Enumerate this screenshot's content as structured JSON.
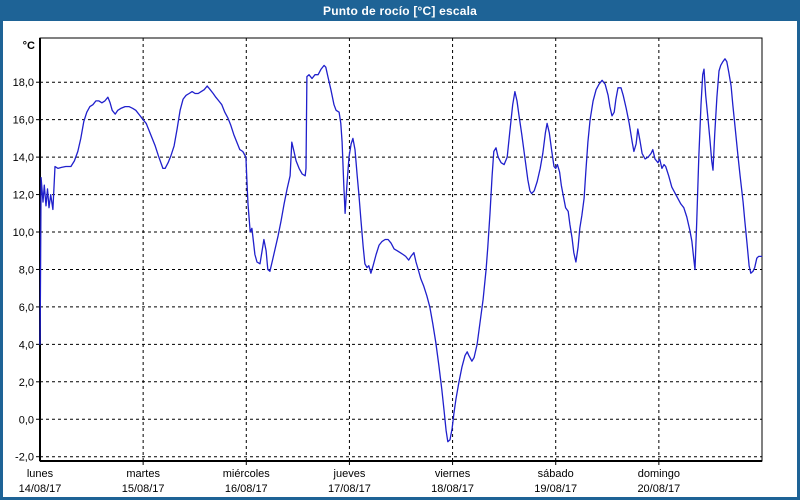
{
  "window": {
    "title": "Punto de rocío [°C] escala"
  },
  "colors": {
    "titlebar": "#1e6396",
    "window_border": "#1e6396",
    "plot_background": "#ffffff",
    "grid": "#000000",
    "axis": "#000000",
    "line": "#2020cc",
    "label": "#000000"
  },
  "chart_data": {
    "type": "line",
    "title": "Punto de rocío [°C] escala",
    "y_unit_label": "°C",
    "ylabel": "",
    "xlabel": "",
    "ylim": [
      -2.2,
      20.4
    ],
    "x_range_hours": [
      0,
      168
    ],
    "grid": "dashed",
    "legend_position": "none",
    "y_ticks": [
      {
        "value": 18,
        "label": "18,0"
      },
      {
        "value": 16,
        "label": "16,0"
      },
      {
        "value": 14,
        "label": "14,0"
      },
      {
        "value": 12,
        "label": "12,0"
      },
      {
        "value": 10,
        "label": "10,0"
      },
      {
        "value": 8,
        "label": "8,0"
      },
      {
        "value": 6,
        "label": "6,0"
      },
      {
        "value": 4,
        "label": "4,0"
      },
      {
        "value": 2,
        "label": "2,0"
      },
      {
        "value": 0,
        "label": "0,0"
      },
      {
        "value": -2,
        "label": "-2,0"
      }
    ],
    "x_days": [
      {
        "name": "lunes",
        "date": "14/08/17"
      },
      {
        "name": "martes",
        "date": "15/08/17"
      },
      {
        "name": "miércoles",
        "date": "16/08/17"
      },
      {
        "name": "jueves",
        "date": "17/08/17"
      },
      {
        "name": "viernes",
        "date": "18/08/17"
      },
      {
        "name": "sábado",
        "date": "19/08/17"
      },
      {
        "name": "domingo",
        "date": "20/08/17"
      }
    ],
    "series": [
      {
        "name": "Punto de rocío",
        "color": "#2020cc",
        "points": [
          [
            0,
            4.0
          ],
          [
            0.1,
            6.6
          ],
          [
            0.25,
            12.9
          ],
          [
            0.7,
            11.6
          ],
          [
            1.0,
            12.5
          ],
          [
            1.4,
            11.4
          ],
          [
            1.75,
            12.3
          ],
          [
            2.1,
            11.3
          ],
          [
            2.5,
            12.0
          ],
          [
            3.0,
            11.2
          ],
          [
            3.5,
            13.5
          ],
          [
            4.2,
            13.4
          ],
          [
            5.0,
            13.45
          ],
          [
            6.0,
            13.5
          ],
          [
            7.2,
            13.5
          ],
          [
            8.0,
            13.8
          ],
          [
            8.8,
            14.3
          ],
          [
            9.5,
            15.0
          ],
          [
            10.2,
            15.9
          ],
          [
            10.9,
            16.4
          ],
          [
            11.6,
            16.7
          ],
          [
            12.3,
            16.8
          ],
          [
            13.0,
            17.0
          ],
          [
            13.7,
            17.0
          ],
          [
            14.4,
            16.9
          ],
          [
            15.1,
            17.0
          ],
          [
            15.8,
            17.2
          ],
          [
            16.3,
            16.9
          ],
          [
            16.8,
            16.5
          ],
          [
            17.5,
            16.3
          ],
          [
            18.1,
            16.5
          ],
          [
            18.8,
            16.6
          ],
          [
            19.8,
            16.7
          ],
          [
            20.7,
            16.7
          ],
          [
            21.6,
            16.6
          ],
          [
            22.3,
            16.5
          ],
          [
            23.0,
            16.3
          ],
          [
            24.0,
            16.0
          ],
          [
            24.7,
            15.8
          ],
          [
            25.4,
            15.4
          ],
          [
            26.1,
            15.0
          ],
          [
            26.8,
            14.6
          ],
          [
            27.5,
            14.1
          ],
          [
            28.6,
            13.4
          ],
          [
            29.1,
            13.4
          ],
          [
            29.8,
            13.7
          ],
          [
            30.5,
            14.1
          ],
          [
            31.2,
            14.6
          ],
          [
            31.9,
            15.5
          ],
          [
            32.6,
            16.5
          ],
          [
            33.3,
            17.1
          ],
          [
            34.0,
            17.3
          ],
          [
            34.7,
            17.4
          ],
          [
            35.4,
            17.5
          ],
          [
            36.1,
            17.4
          ],
          [
            36.8,
            17.4
          ],
          [
            37.5,
            17.5
          ],
          [
            38.2,
            17.6
          ],
          [
            38.9,
            17.8
          ],
          [
            39.6,
            17.6
          ],
          [
            40.3,
            17.4
          ],
          [
            40.9,
            17.2
          ],
          [
            41.6,
            17.0
          ],
          [
            42.3,
            16.8
          ],
          [
            43.0,
            16.4
          ],
          [
            43.7,
            16.1
          ],
          [
            44.4,
            15.7
          ],
          [
            45.1,
            15.2
          ],
          [
            45.8,
            14.8
          ],
          [
            46.5,
            14.4
          ],
          [
            47.2,
            14.3
          ],
          [
            47.9,
            14.0
          ],
          [
            48.2,
            12.5
          ],
          [
            48.4,
            11.5
          ],
          [
            48.9,
            10.0
          ],
          [
            49.3,
            10.2
          ],
          [
            49.6,
            9.6
          ],
          [
            50.0,
            8.8
          ],
          [
            50.5,
            8.4
          ],
          [
            51.2,
            8.3
          ],
          [
            51.6,
            8.9
          ],
          [
            52.1,
            9.6
          ],
          [
            52.6,
            9.0
          ],
          [
            53.0,
            8.0
          ],
          [
            53.5,
            7.9
          ],
          [
            54.0,
            8.4
          ],
          [
            54.7,
            9.1
          ],
          [
            55.4,
            9.8
          ],
          [
            56.1,
            10.6
          ],
          [
            56.8,
            11.5
          ],
          [
            57.5,
            12.3
          ],
          [
            58.2,
            13.0
          ],
          [
            58.6,
            14.8
          ],
          [
            59.1,
            14.3
          ],
          [
            59.6,
            13.8
          ],
          [
            60.3,
            13.4
          ],
          [
            61.0,
            13.1
          ],
          [
            61.7,
            13.0
          ],
          [
            61.9,
            13.4
          ],
          [
            62.1,
            18.3
          ],
          [
            62.6,
            18.4
          ],
          [
            63.3,
            18.2
          ],
          [
            64.0,
            18.4
          ],
          [
            64.7,
            18.4
          ],
          [
            65.4,
            18.7
          ],
          [
            66.1,
            18.9
          ],
          [
            66.5,
            18.8
          ],
          [
            67.0,
            18.3
          ],
          [
            67.7,
            17.6
          ],
          [
            68.4,
            16.8
          ],
          [
            68.9,
            16.5
          ],
          [
            69.6,
            16.4
          ],
          [
            70.0,
            15.8
          ],
          [
            70.3,
            14.8
          ],
          [
            70.7,
            12.5
          ],
          [
            71.0,
            11.0
          ],
          [
            71.4,
            12.5
          ],
          [
            71.9,
            14.0
          ],
          [
            72.4,
            14.7
          ],
          [
            72.8,
            15.0
          ],
          [
            73.3,
            14.4
          ],
          [
            73.8,
            13.0
          ],
          [
            74.2,
            12.0
          ],
          [
            74.7,
            10.6
          ],
          [
            75.2,
            9.2
          ],
          [
            75.6,
            8.3
          ],
          [
            76.1,
            8.1
          ],
          [
            76.5,
            8.2
          ],
          [
            77.0,
            7.8
          ],
          [
            77.5,
            8.2
          ],
          [
            78.2,
            8.8
          ],
          [
            78.9,
            9.3
          ],
          [
            79.6,
            9.5
          ],
          [
            80.3,
            9.6
          ],
          [
            81.0,
            9.6
          ],
          [
            81.7,
            9.4
          ],
          [
            82.4,
            9.1
          ],
          [
            83.1,
            9.0
          ],
          [
            83.8,
            8.9
          ],
          [
            84.5,
            8.8
          ],
          [
            85.1,
            8.7
          ],
          [
            85.8,
            8.5
          ],
          [
            86.3,
            8.7
          ],
          [
            87.0,
            8.9
          ],
          [
            87.5,
            8.4
          ],
          [
            88.0,
            8.0
          ],
          [
            88.6,
            7.5
          ],
          [
            89.3,
            7.1
          ],
          [
            90.0,
            6.6
          ],
          [
            90.7,
            6.0
          ],
          [
            91.4,
            5.1
          ],
          [
            92.1,
            4.1
          ],
          [
            92.8,
            2.9
          ],
          [
            93.5,
            1.6
          ],
          [
            94.0,
            0.5
          ],
          [
            94.5,
            -0.6
          ],
          [
            94.9,
            -1.2
          ],
          [
            95.4,
            -1.1
          ],
          [
            95.9,
            -0.5
          ],
          [
            96.3,
            0.3
          ],
          [
            96.8,
            1.1
          ],
          [
            97.5,
            2.0
          ],
          [
            98.2,
            2.8
          ],
          [
            98.9,
            3.4
          ],
          [
            99.4,
            3.6
          ],
          [
            99.8,
            3.4
          ],
          [
            100.5,
            3.1
          ],
          [
            101.0,
            3.3
          ],
          [
            101.7,
            4.0
          ],
          [
            102.4,
            5.2
          ],
          [
            103.1,
            6.4
          ],
          [
            103.8,
            8.0
          ],
          [
            104.2,
            9.2
          ],
          [
            104.7,
            11.0
          ],
          [
            105.2,
            13.0
          ],
          [
            105.6,
            14.3
          ],
          [
            106.1,
            14.5
          ],
          [
            106.6,
            14.0
          ],
          [
            107.3,
            13.7
          ],
          [
            108.0,
            13.6
          ],
          [
            108.7,
            14.0
          ],
          [
            109.3,
            15.3
          ],
          [
            110.0,
            16.8
          ],
          [
            110.5,
            17.5
          ],
          [
            111.0,
            17.0
          ],
          [
            111.4,
            16.3
          ],
          [
            112.1,
            15.2
          ],
          [
            112.8,
            14.0
          ],
          [
            113.5,
            12.8
          ],
          [
            114.0,
            12.2
          ],
          [
            114.4,
            12.05
          ],
          [
            115.0,
            12.2
          ],
          [
            115.7,
            12.7
          ],
          [
            116.4,
            13.4
          ],
          [
            117.0,
            14.2
          ],
          [
            117.6,
            15.3
          ],
          [
            118.0,
            15.8
          ],
          [
            118.5,
            15.3
          ],
          [
            119.1,
            14.3
          ],
          [
            119.6,
            13.5
          ],
          [
            120.0,
            13.4
          ],
          [
            120.4,
            13.6
          ],
          [
            120.9,
            13.2
          ],
          [
            121.3,
            12.5
          ],
          [
            121.8,
            11.9
          ],
          [
            122.3,
            11.3
          ],
          [
            122.9,
            11.1
          ],
          [
            123.3,
            10.4
          ],
          [
            123.8,
            9.7
          ],
          [
            124.2,
            8.9
          ],
          [
            124.7,
            8.4
          ],
          [
            125.2,
            9.2
          ],
          [
            125.6,
            10.2
          ],
          [
            126.1,
            10.9
          ],
          [
            126.6,
            11.8
          ],
          [
            127.0,
            13.2
          ],
          [
            127.5,
            14.8
          ],
          [
            128.0,
            16.0
          ],
          [
            128.7,
            17.0
          ],
          [
            129.4,
            17.6
          ],
          [
            130.1,
            17.9
          ],
          [
            130.8,
            18.1
          ],
          [
            131.5,
            17.9
          ],
          [
            132.2,
            17.3
          ],
          [
            132.6,
            16.7
          ],
          [
            133.1,
            16.2
          ],
          [
            133.6,
            16.4
          ],
          [
            134.0,
            17.1
          ],
          [
            134.5,
            17.7
          ],
          [
            135.2,
            17.7
          ],
          [
            135.7,
            17.3
          ],
          [
            136.4,
            16.6
          ],
          [
            137.1,
            15.8
          ],
          [
            137.8,
            14.8
          ],
          [
            138.2,
            14.3
          ],
          [
            138.7,
            14.7
          ],
          [
            139.1,
            15.5
          ],
          [
            139.6,
            14.9
          ],
          [
            140.1,
            14.2
          ],
          [
            140.8,
            13.9
          ],
          [
            141.5,
            14.0
          ],
          [
            142.2,
            14.2
          ],
          [
            142.6,
            14.4
          ],
          [
            143.1,
            13.9
          ],
          [
            143.8,
            13.7
          ],
          [
            144.2,
            13.9
          ],
          [
            144.7,
            13.4
          ],
          [
            145.2,
            13.6
          ],
          [
            145.6,
            13.5
          ],
          [
            146.3,
            13.0
          ],
          [
            147.0,
            12.4
          ],
          [
            147.7,
            12.1
          ],
          [
            148.4,
            11.8
          ],
          [
            149.1,
            11.5
          ],
          [
            149.8,
            11.3
          ],
          [
            150.5,
            10.8
          ],
          [
            151.2,
            10.1
          ],
          [
            151.7,
            9.5
          ],
          [
            152.1,
            8.6
          ],
          [
            152.4,
            8.0
          ],
          [
            152.8,
            10.5
          ],
          [
            153.3,
            14.0
          ],
          [
            153.8,
            16.8
          ],
          [
            154.2,
            18.4
          ],
          [
            154.5,
            18.7
          ],
          [
            154.9,
            17.3
          ],
          [
            155.4,
            16.1
          ],
          [
            155.9,
            14.9
          ],
          [
            156.3,
            13.8
          ],
          [
            156.6,
            13.3
          ],
          [
            157.0,
            15.2
          ],
          [
            157.5,
            17.2
          ],
          [
            158.0,
            18.6
          ],
          [
            158.4,
            18.9
          ],
          [
            158.9,
            19.1
          ],
          [
            159.4,
            19.25
          ],
          [
            159.8,
            19.1
          ],
          [
            160.3,
            18.5
          ],
          [
            160.8,
            17.8
          ],
          [
            161.2,
            16.8
          ],
          [
            161.7,
            15.7
          ],
          [
            162.4,
            14.1
          ],
          [
            162.9,
            13.0
          ],
          [
            163.6,
            11.6
          ],
          [
            164.0,
            10.6
          ],
          [
            164.5,
            9.4
          ],
          [
            165.0,
            8.2
          ],
          [
            165.4,
            7.8
          ],
          [
            165.9,
            7.9
          ],
          [
            166.3,
            8.1
          ],
          [
            166.8,
            8.6
          ],
          [
            167.2,
            8.7
          ],
          [
            167.9,
            8.7
          ]
        ]
      }
    ]
  }
}
